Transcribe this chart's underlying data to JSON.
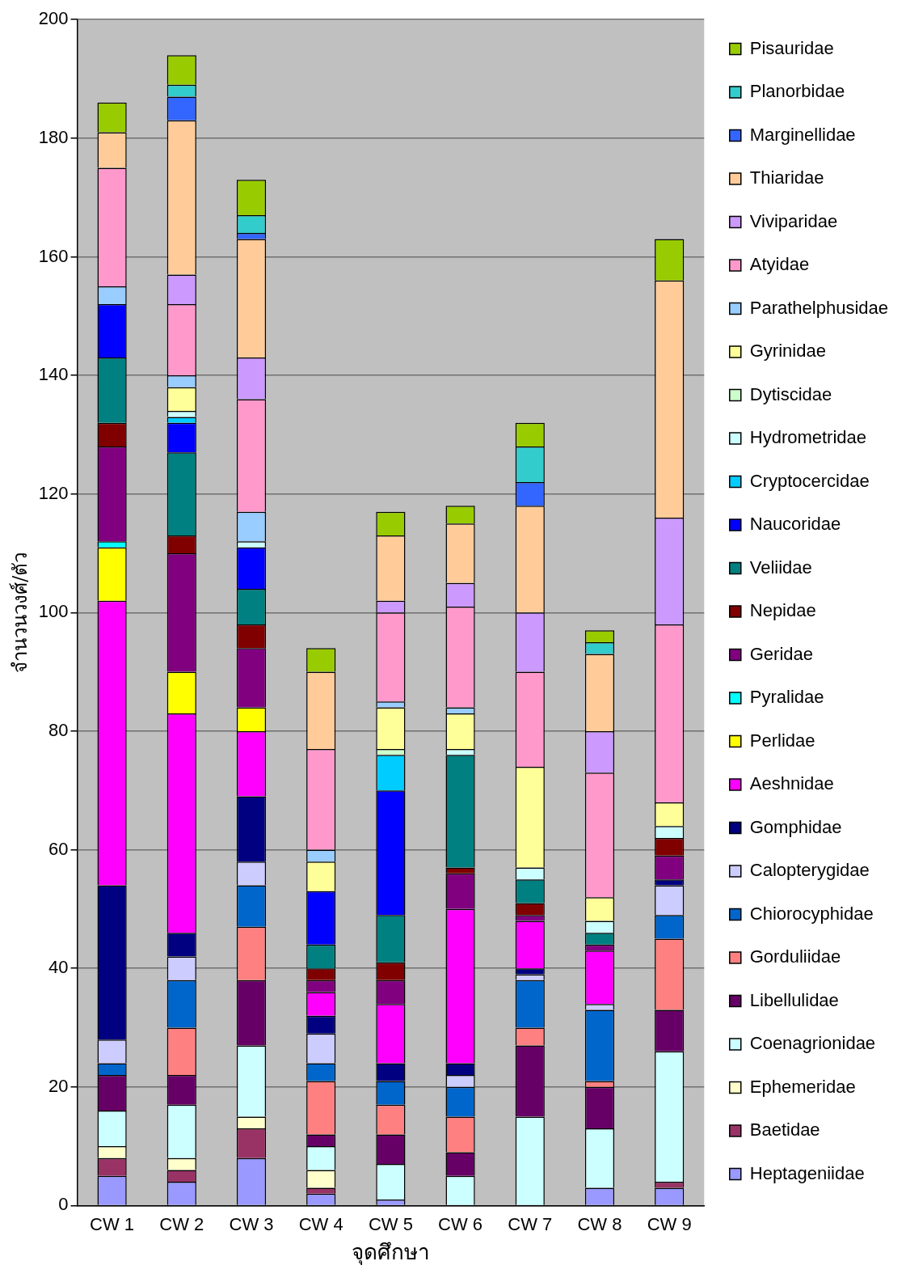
{
  "chart_data": {
    "type": "bar",
    "stacked": true,
    "xlabel": "จุดศึกษา",
    "ylabel": "จำนวนวงศ์/ตัว",
    "categories": [
      "CW 1",
      "CW 2",
      "CW 3",
      "CW 4",
      "CW 5",
      "CW 6",
      "CW 7",
      "CW 8",
      "CW 9"
    ],
    "ylim": [
      0,
      200
    ],
    "yticks": [
      0,
      20,
      40,
      60,
      80,
      100,
      120,
      140,
      160,
      180,
      200
    ],
    "grid": "y",
    "legend": "right",
    "series": [
      {
        "name": "Heptageniidae",
        "color": "#9999ff",
        "values": [
          5,
          4,
          8,
          2,
          1,
          0,
          0,
          3,
          3
        ]
      },
      {
        "name": "Baetidae",
        "color": "#993366",
        "values": [
          3,
          2,
          5,
          1,
          0,
          0,
          0,
          0,
          1
        ]
      },
      {
        "name": "Ephemeridae",
        "color": "#ffffcc",
        "values": [
          2,
          2,
          2,
          3,
          0,
          0,
          0,
          0,
          0
        ]
      },
      {
        "name": "Coenagrionidae",
        "color": "#ccffff",
        "values": [
          6,
          9,
          12,
          4,
          6,
          5,
          15,
          10,
          22
        ]
      },
      {
        "name": "Libellulidae",
        "color": "#660066",
        "values": [
          6,
          5,
          11,
          2,
          5,
          4,
          12,
          7,
          7
        ]
      },
      {
        "name": "Gorduliidae",
        "color": "#ff8080",
        "values": [
          0,
          8,
          9,
          9,
          5,
          6,
          3,
          1,
          12
        ]
      },
      {
        "name": "Chiorocyphidae",
        "color": "#0066cc",
        "values": [
          2,
          8,
          7,
          3,
          4,
          5,
          8,
          12,
          4
        ]
      },
      {
        "name": "Calopterygidae",
        "color": "#ccccff",
        "values": [
          4,
          4,
          4,
          5,
          0,
          2,
          1,
          1,
          5
        ]
      },
      {
        "name": "Gomphidae",
        "color": "#000080",
        "values": [
          26,
          4,
          11,
          3,
          3,
          2,
          1,
          0,
          1
        ]
      },
      {
        "name": "Aeshnidae",
        "color": "#ff00ff",
        "values": [
          48,
          37,
          11,
          4,
          10,
          26,
          8,
          9,
          0
        ]
      },
      {
        "name": "Perlidae",
        "color": "#ffff00",
        "values": [
          9,
          7,
          4,
          0,
          0,
          0,
          0,
          0,
          0
        ]
      },
      {
        "name": "Pyralidae",
        "color": "#00ffff",
        "values": [
          1,
          0,
          0,
          0,
          0,
          0,
          0,
          0,
          0
        ]
      },
      {
        "name": "Geridae",
        "color": "#800080",
        "values": [
          16,
          20,
          10,
          2,
          4,
          6,
          1,
          1,
          4
        ]
      },
      {
        "name": "Nepidae",
        "color": "#800000",
        "values": [
          4,
          3,
          4,
          2,
          3,
          1,
          2,
          0,
          3
        ]
      },
      {
        "name": "Veliidae",
        "color": "#008080",
        "values": [
          11,
          14,
          6,
          4,
          8,
          19,
          4,
          2,
          0
        ]
      },
      {
        "name": "Naucoridae",
        "color": "#0000ff",
        "values": [
          9,
          5,
          7,
          9,
          21,
          0,
          0,
          0,
          0
        ]
      },
      {
        "name": "Cryptocercidae",
        "color": "#00ccff",
        "values": [
          0,
          1,
          0,
          0,
          6,
          0,
          0,
          0,
          0
        ]
      },
      {
        "name": "Hydrometridae",
        "color": "#ccffff",
        "values": [
          0,
          1,
          1,
          0,
          0,
          1,
          2,
          2,
          2
        ]
      },
      {
        "name": "Dytiscidae",
        "color": "#ccffcc",
        "values": [
          0,
          0,
          0,
          0,
          1,
          0,
          0,
          0,
          0
        ]
      },
      {
        "name": "Gyrinidae",
        "color": "#ffff99",
        "values": [
          0,
          4,
          0,
          5,
          7,
          6,
          17,
          4,
          4
        ]
      },
      {
        "name": "Parathelphusidae",
        "color": "#99ccff",
        "values": [
          3,
          2,
          5,
          2,
          1,
          1,
          0,
          0,
          0
        ]
      },
      {
        "name": "Atyidae",
        "color": "#ff99cc",
        "values": [
          20,
          12,
          19,
          17,
          15,
          17,
          16,
          21,
          30
        ]
      },
      {
        "name": "Viviparidae",
        "color": "#cc99ff",
        "values": [
          0,
          5,
          7,
          0,
          2,
          4,
          10,
          7,
          18
        ]
      },
      {
        "name": "Thiaridae",
        "color": "#ffcc99",
        "values": [
          6,
          26,
          20,
          13,
          11,
          10,
          18,
          13,
          40
        ]
      },
      {
        "name": "Marginellidae",
        "color": "#3366ff",
        "values": [
          0,
          4,
          1,
          0,
          0,
          0,
          4,
          0,
          0
        ]
      },
      {
        "name": "Planorbidae",
        "color": "#33cccc",
        "values": [
          0,
          2,
          3,
          0,
          0,
          0,
          6,
          2,
          0
        ]
      },
      {
        "name": "Pisauridae",
        "color": "#99cc00",
        "values": [
          5,
          5,
          6,
          4,
          4,
          3,
          4,
          2,
          7
        ]
      }
    ]
  }
}
